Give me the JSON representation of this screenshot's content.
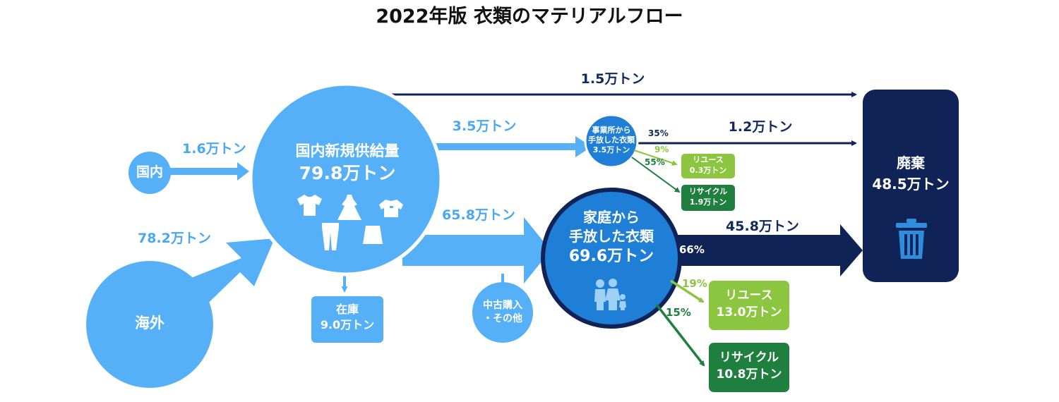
{
  "title": "2022年版 衣類のマテリアルフロー",
  "colors": {
    "light_blue": "#55b0f7",
    "mid_blue": "#1f7fd6",
    "navy": "#0f2356",
    "light_green": "#8cc640",
    "dark_green": "#1e7f3e"
  },
  "nodes": {
    "domestic": "国内",
    "overseas": "海外",
    "new_supply": {
      "name": "国内新規供給量",
      "value": "79.8万トン"
    },
    "inventory": {
      "name": "在庫",
      "value": "9.0万トン"
    },
    "used_purchase": {
      "line1": "中古購入",
      "line2": "・その他"
    },
    "business": {
      "line1": "事業所から",
      "line2": "手放した衣類",
      "value": "3.5万トン"
    },
    "household": {
      "line1": "家庭から",
      "line2": "手放した衣類",
      "value": "69.6万トン"
    },
    "reuse_small": {
      "name": "リユース",
      "value": "0.3万トン"
    },
    "recycle_small": {
      "name": "リサイクル",
      "value": "1.9万トン"
    },
    "reuse_large": {
      "name": "リユース",
      "value": "13.0万トン"
    },
    "recycle_large": {
      "name": "リサイクル",
      "value": "10.8万トン"
    },
    "disposal": {
      "name": "廃棄",
      "value": "48.5万トン"
    }
  },
  "flows": {
    "domestic_in": "1.6万トン",
    "overseas_in": "78.2万トン",
    "supply_to_disposal": "1.5万トン",
    "supply_to_business": "3.5万トン",
    "supply_to_household": "65.8万トン",
    "business_to_disposal": "1.2万トン",
    "household_to_disposal": "45.8万トン"
  },
  "percentages": {
    "business_disposal": "35%",
    "business_reuse": "9%",
    "business_recycle": "55%",
    "household_disposal": "66%",
    "household_reuse": "19%",
    "household_recycle": "15%"
  },
  "icons": [
    "tshirt-icon",
    "dress-icon",
    "shirt-icon",
    "jeans-icon",
    "skirt-icon",
    "family-icon",
    "trash-icon"
  ]
}
